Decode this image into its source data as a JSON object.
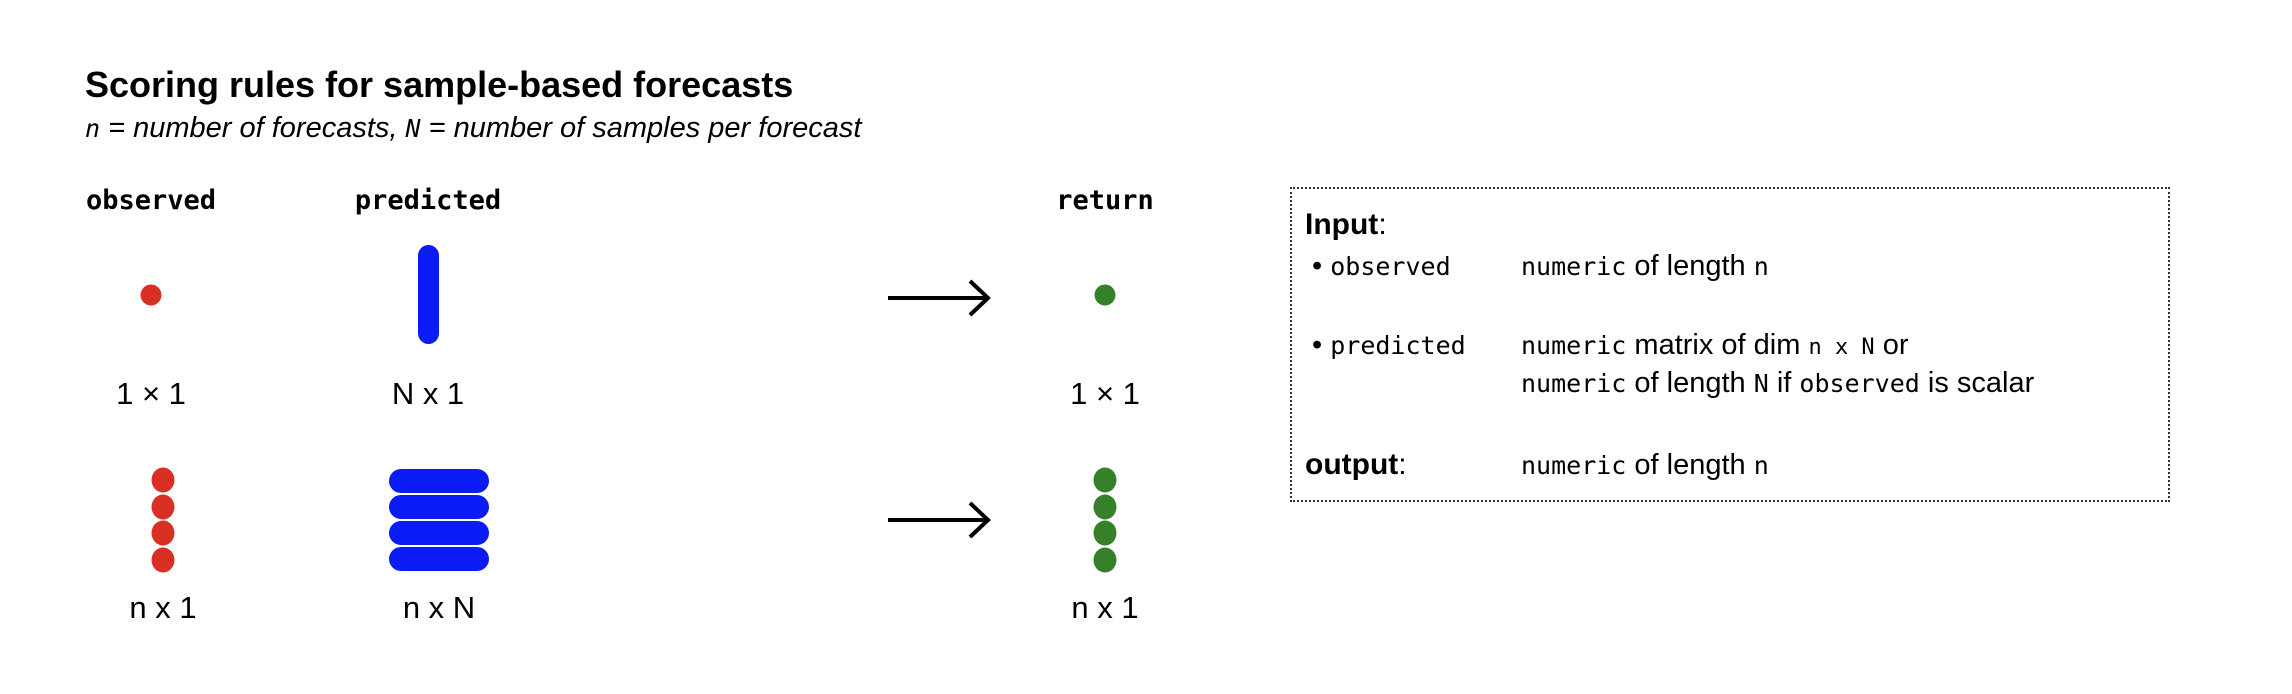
{
  "title": "Scoring rules for sample-based forecasts",
  "subtitle": {
    "n": "n",
    "n_def": " = number of forecasts, ",
    "N": "N",
    "N_def": " = number of samples per forecast"
  },
  "headers": {
    "observed": "observed",
    "predicted": "predicted",
    "return": "return"
  },
  "row1": {
    "observed_dim": "1 × 1",
    "predicted_dim": "N x 1",
    "return_dim": "1 × 1"
  },
  "row2": {
    "observed_dim": "n x 1",
    "predicted_dim": "n x N",
    "return_dim": "n x 1"
  },
  "colors": {
    "observed": "#d93025",
    "predicted": "#0a1bf5",
    "return": "#37802a"
  },
  "icons": {
    "arrow": "right-arrow-icon"
  },
  "box": {
    "input_label": "Input",
    "colon": ":",
    "bullet": "•",
    "observed": {
      "name": "observed",
      "type": "numeric",
      "text": " of length ",
      "var": "n"
    },
    "predicted": {
      "name": "predicted",
      "type": "numeric",
      "text1": " matrix of dim ",
      "dim": "n x N",
      "text2": " or",
      "type2": "numeric",
      "text3": " of length ",
      "var": "N",
      "text4": " if ",
      "obs": "observed",
      "text5": " is scalar"
    },
    "output_label": "output",
    "output": {
      "type": "numeric",
      "text": " of length ",
      "var": "n"
    }
  }
}
